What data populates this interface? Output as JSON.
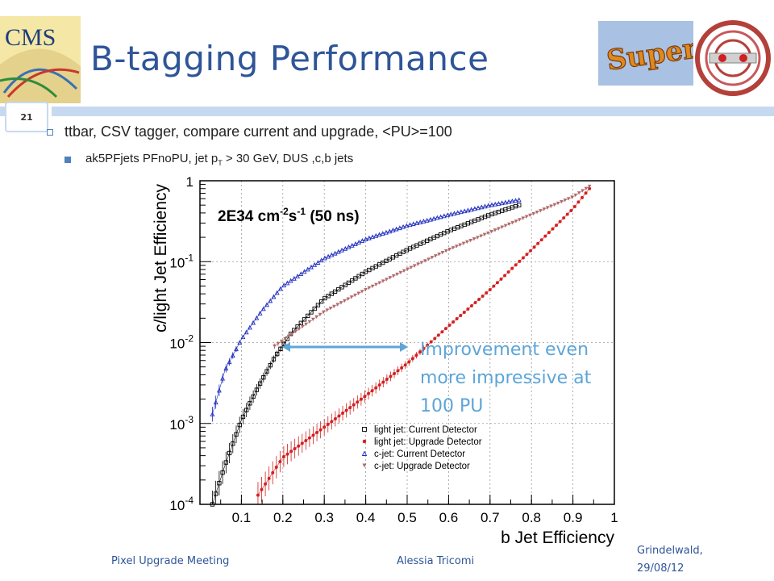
{
  "header": {
    "title": "B-tagging Performance",
    "logo_left_text": "CMS",
    "logo_right_text": "Super"
  },
  "slide": {
    "number": "21"
  },
  "bullets": {
    "b1": "ttbar, CSV tagger, compare current and upgrade, <PU>=100",
    "b2_pre": "ak5PFjets PFnoPU, jet p",
    "b2_sub": "T",
    "b2_post": " > 30 GeV, DUS ,c,b jets"
  },
  "annotation": {
    "line1": "Improvement even",
    "line2": "more impressive at",
    "line3": "100 PU"
  },
  "footer": {
    "left": "Pixel Upgrade Meeting",
    "center": "Alessia Tricomi",
    "right_line1": "Grindelwald,",
    "right_line2": "29/08/12"
  },
  "colors": {
    "title": "#2f5598",
    "bar": "#c6d9f1",
    "annotation": "#5da5d8",
    "series_current_light": "#000000",
    "series_upgrade_light": "#d42020",
    "series_current_c": "#1f2dbf",
    "series_upgrade_c": "#b06a6a"
  },
  "chart_data": {
    "type": "line",
    "xlabel": "b Jet Efficiency",
    "ylabel": "c/light Jet Efficiency",
    "xlim": [
      0,
      1
    ],
    "ylim": [
      0.0001,
      1
    ],
    "yscale": "log",
    "legend_position": "bottom-right",
    "inset_text": "2E34 cm-2s-1 (50 ns)",
    "xticks": [
      "0.1",
      "0.2",
      "0.3",
      "0.4",
      "0.5",
      "0.6",
      "0.7",
      "0.8",
      "0.9",
      "1"
    ],
    "yticks": [
      {
        "base": "1",
        "exp": ""
      },
      {
        "base": "10",
        "exp": "-1"
      },
      {
        "base": "10",
        "exp": "-2"
      },
      {
        "base": "10",
        "exp": "-3"
      },
      {
        "base": "10",
        "exp": "-4"
      }
    ],
    "series": [
      {
        "name": "light jet: Current Detector",
        "marker": "open-square",
        "color": "#000000",
        "x": [
          0.03,
          0.06,
          0.1,
          0.14,
          0.18,
          0.22,
          0.3,
          0.4,
          0.5,
          0.6,
          0.7,
          0.77
        ],
        "y": [
          0.0001,
          0.0003,
          0.0011,
          0.0028,
          0.0065,
          0.013,
          0.035,
          0.075,
          0.14,
          0.24,
          0.38,
          0.5
        ]
      },
      {
        "name": "light jet: Upgrade Detector",
        "marker": "filled-circle",
        "color": "#d42020",
        "x": [
          0.14,
          0.2,
          0.3,
          0.4,
          0.5,
          0.6,
          0.7,
          0.8,
          0.9,
          0.94
        ],
        "y": [
          0.00013,
          0.00038,
          0.0009,
          0.0022,
          0.0055,
          0.016,
          0.045,
          0.14,
          0.45,
          0.8
        ]
      },
      {
        "name": "c-jet: Current Detector",
        "marker": "open-triangle",
        "color": "#1f2dbf",
        "x": [
          0.03,
          0.06,
          0.1,
          0.15,
          0.2,
          0.3,
          0.4,
          0.5,
          0.6,
          0.7,
          0.77
        ],
        "y": [
          0.0013,
          0.0045,
          0.011,
          0.025,
          0.05,
          0.11,
          0.19,
          0.28,
          0.38,
          0.5,
          0.58
        ]
      },
      {
        "name": "c-jet: Upgrade Detector",
        "marker": "down-triangle",
        "color": "#b06a6a",
        "x": [
          0.18,
          0.25,
          0.3,
          0.4,
          0.5,
          0.6,
          0.7,
          0.8,
          0.9,
          0.94
        ],
        "y": [
          0.009,
          0.016,
          0.024,
          0.045,
          0.08,
          0.14,
          0.23,
          0.38,
          0.63,
          0.85
        ]
      }
    ]
  }
}
